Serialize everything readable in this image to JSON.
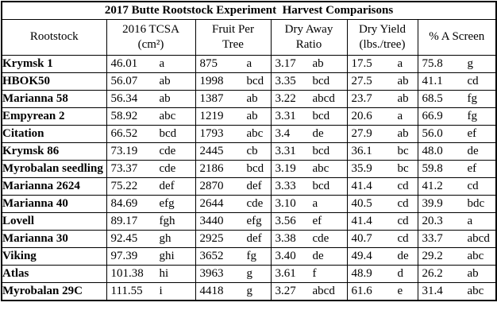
{
  "title": "2017 Butte Rootstock Experiment  Harvest Comparisons",
  "columns": [
    {
      "line1": "Rootstock",
      "line2": ""
    },
    {
      "line1": "2016 TCSA",
      "line2": "(cm²)"
    },
    {
      "line1": "Fruit Per",
      "line2": "Tree"
    },
    {
      "line1": "Dry Away",
      "line2": "Ratio"
    },
    {
      "line1": "Dry Yield",
      "line2": "(lbs./tree)"
    },
    {
      "line1": "% A Screen",
      "line2": ""
    }
  ],
  "rows": [
    {
      "name": "Krymsk 1",
      "cells": [
        [
          "46.01",
          "a"
        ],
        [
          "875",
          "a"
        ],
        [
          "3.17",
          "ab"
        ],
        [
          "17.5",
          "a"
        ],
        [
          "75.8",
          "g"
        ]
      ]
    },
    {
      "name": "HBOK50",
      "cells": [
        [
          "56.07",
          "ab"
        ],
        [
          "1998",
          "bcd"
        ],
        [
          "3.35",
          "bcd"
        ],
        [
          "27.5",
          "ab"
        ],
        [
          "41.1",
          "cd"
        ]
      ]
    },
    {
      "name": "Marianna 58",
      "cells": [
        [
          "56.34",
          "ab"
        ],
        [
          "1387",
          "ab"
        ],
        [
          "3.22",
          "abcd"
        ],
        [
          "23.7",
          "ab"
        ],
        [
          "68.5",
          "fg"
        ]
      ]
    },
    {
      "name": "Empyrean 2",
      "cells": [
        [
          "58.92",
          "abc"
        ],
        [
          "1219",
          "ab"
        ],
        [
          "3.31",
          "bcd"
        ],
        [
          "20.6",
          "a"
        ],
        [
          "66.9",
          "fg"
        ]
      ]
    },
    {
      "name": "Citation",
      "cells": [
        [
          "66.52",
          "bcd"
        ],
        [
          "1793",
          "abc"
        ],
        [
          "3.4",
          "de"
        ],
        [
          "27.9",
          "ab"
        ],
        [
          "56.0",
          "ef"
        ]
      ]
    },
    {
      "name": "Krymsk 86",
      "cells": [
        [
          "73.19",
          "cde"
        ],
        [
          "2445",
          "cb"
        ],
        [
          "3.31",
          "bcd"
        ],
        [
          "36.1",
          "bc"
        ],
        [
          "48.0",
          "de"
        ]
      ]
    },
    {
      "name": "Myrobalan seedling",
      "cells": [
        [
          "73.37",
          "cde"
        ],
        [
          "2186",
          "bcd"
        ],
        [
          "3.19",
          "abc"
        ],
        [
          "35.9",
          "bc"
        ],
        [
          "59.8",
          "ef"
        ]
      ]
    },
    {
      "name": "Marianna 2624",
      "cells": [
        [
          "75.22",
          "def"
        ],
        [
          "2870",
          "def"
        ],
        [
          "3.33",
          "bcd"
        ],
        [
          "41.4",
          "cd"
        ],
        [
          "41.2",
          "cd"
        ]
      ]
    },
    {
      "name": "Marianna 40",
      "cells": [
        [
          "84.69",
          "efg"
        ],
        [
          "2644",
          "cde"
        ],
        [
          "3.10",
          "a"
        ],
        [
          "40.5",
          "cd"
        ],
        [
          "39.9",
          "bdc"
        ]
      ]
    },
    {
      "name": "Lovell",
      "cells": [
        [
          "89.17",
          "fgh"
        ],
        [
          "3440",
          "efg"
        ],
        [
          "3.56",
          "ef"
        ],
        [
          "41.4",
          "cd"
        ],
        [
          "20.3",
          "a"
        ]
      ]
    },
    {
      "name": "Marianna 30",
      "cells": [
        [
          "92.45",
          "gh"
        ],
        [
          "2925",
          "def"
        ],
        [
          "3.38",
          "cde"
        ],
        [
          "40.7",
          "cd"
        ],
        [
          "33.7",
          "abcd"
        ]
      ]
    },
    {
      "name": "Viking",
      "cells": [
        [
          "97.39",
          "ghi"
        ],
        [
          "3652",
          "fg"
        ],
        [
          "3.40",
          "de"
        ],
        [
          "49.4",
          "de"
        ],
        [
          "29.2",
          "abc"
        ]
      ]
    },
    {
      "name": "Atlas",
      "cells": [
        [
          "101.38",
          "hi"
        ],
        [
          "3963",
          "g"
        ],
        [
          "3.61",
          "f"
        ],
        [
          "48.9",
          "d"
        ],
        [
          "26.2",
          "ab"
        ]
      ]
    },
    {
      "name": "Myrobalan 29C",
      "cells": [
        [
          "111.55",
          "i"
        ],
        [
          "4418",
          "g"
        ],
        [
          "3.27",
          "abcd"
        ],
        [
          "61.6",
          "e"
        ],
        [
          "31.4",
          "abc"
        ]
      ]
    }
  ]
}
